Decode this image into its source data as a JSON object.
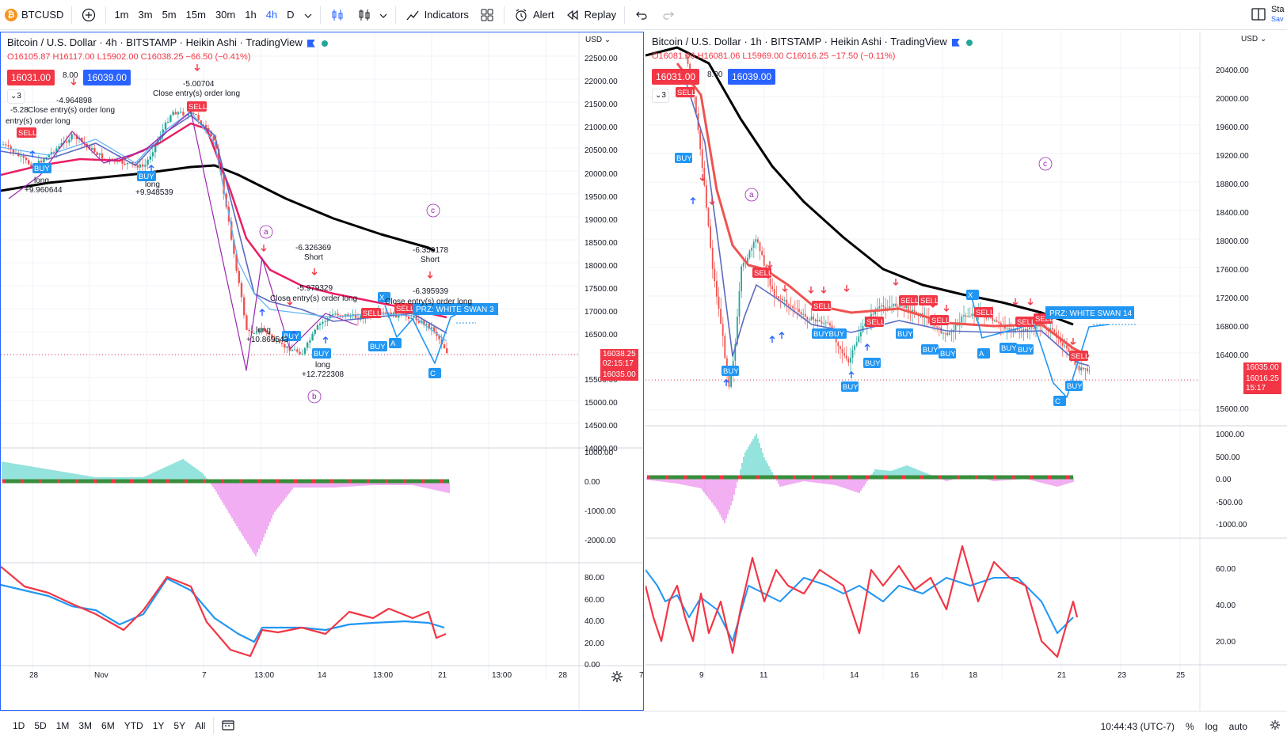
{
  "toolbar": {
    "symbol": "BTCUSD",
    "intervals": [
      "1m",
      "3m",
      "5m",
      "15m",
      "30m",
      "1h",
      "4h",
      "D"
    ],
    "active_interval": "4h",
    "indicators_label": "Indicators",
    "alert_label": "Alert",
    "replay_label": "Replay",
    "right_label_1": "Sta",
    "right_label_2": "Sav"
  },
  "left_chart": {
    "title": "Bitcoin / U.S. Dollar · 4h · BITSTAMP · Heikin Ashi · TradingView",
    "ohlc": {
      "open": "O16105.87",
      "high": "H16117.00",
      "low": "L15902.00",
      "close": "C16038.25",
      "change": "−66.50 (−0.41%)"
    },
    "sell_price": "16031.00",
    "buy_price": "16039.00",
    "spread": "8.00",
    "collapse": "3",
    "currency": "USD",
    "price_axis": [
      "22500.00",
      "22000.00",
      "21500.00",
      "21000.00",
      "20500.00",
      "20000.00",
      "19500.00",
      "19000.00",
      "18500.00",
      "18000.00",
      "17500.00",
      "17000.00",
      "16500.00",
      "15500.00",
      "15000.00",
      "14500.00",
      "14000.00"
    ],
    "last_price": "16038.25",
    "countdown": "02:15:17",
    "bid_tag": "16035.00",
    "macd_axis": [
      "1000.00",
      "0.00",
      "-1000.00",
      "-2000.00"
    ],
    "rsi_axis": [
      "80.00",
      "60.00",
      "40.00",
      "20.00",
      "0.00"
    ],
    "time_axis": [
      "28",
      "Nov",
      "7",
      "13:00",
      "14",
      "13:00",
      "21",
      "13:00",
      "28"
    ],
    "annotations": {
      "a": "a",
      "b": "b",
      "c": "c",
      "n1": "-5.00704",
      "n1b": "Close entry(s) order long",
      "n2": "-4.964898",
      "n2b": "Close entry(s) order long",
      "n3": "-5.28",
      "n3b": "entry(s) order long",
      "n4": "+9.960644",
      "n4b": "long",
      "n5": "+9.948539",
      "n5b": "long",
      "n6": "-6.326369",
      "n6b": "Short",
      "n7": "-5.979329",
      "n7b": "Close entry(s) order long",
      "n8": "+10.869543",
      "n8b": "long",
      "n9": "+12.722308",
      "n9b": "long",
      "n10": "-6.350178",
      "n10b": "Short",
      "n11": "-6.395939",
      "n11b": "Close entry(s) order long",
      "prz": "PRZ: WHITE SWAN 3",
      "sell": "SELL",
      "buy": "BUY",
      "x": "X",
      "pa": "A",
      "pc": "C"
    }
  },
  "right_chart": {
    "title": "Bitcoin / U.S. Dollar · 1h · BITSTAMP · Heikin Ashi · TradingView",
    "ohlc": {
      "open": "O16081.06",
      "high": "H16081.06",
      "low": "L15969.00",
      "close": "C16016.25",
      "change": "−17.50 (−0.11%)"
    },
    "sell_price": "16031.00",
    "buy_price": "16039.00",
    "spread": "8.00",
    "collapse": "3",
    "currency": "USD",
    "price_axis": [
      "20400.00",
      "20000.00",
      "19600.00",
      "19200.00",
      "18800.00",
      "18400.00",
      "18000.00",
      "17600.00",
      "17200.00",
      "16800.00",
      "16400.00",
      "15600.00"
    ],
    "last_price": "16035.00",
    "last_price2": "16016.25",
    "countdown": "15:17",
    "macd_axis": [
      "1000.00",
      "500.00",
      "0.00",
      "-500.00",
      "-1000.00"
    ],
    "rsi_axis": [
      "60.00",
      "40.00",
      "20.00"
    ],
    "time_axis": [
      "7",
      "9",
      "11",
      "14",
      "16",
      "18",
      "21",
      "23",
      "25"
    ],
    "annotations": {
      "a": "a",
      "c": "c",
      "prz": "PRZ: WHITE SWAN 14",
      "sell": "SELL",
      "buy": "BUY",
      "x": "X",
      "pa": "A",
      "pc": "C",
      "buybuy": "BUYBUY"
    }
  },
  "bottombar": {
    "ranges": [
      "1D",
      "5D",
      "1M",
      "3M",
      "6M",
      "YTD",
      "1Y",
      "5Y",
      "All"
    ],
    "clock": "10:44:43 (UTC-7)",
    "percent": "%",
    "log": "log",
    "auto": "auto"
  },
  "colors": {
    "sell": "#f23645",
    "buy": "#2962ff",
    "ema_black": "#000000",
    "ema_red": "#e91e63",
    "rsi_blue": "#2196f3",
    "rsi_red": "#f23645",
    "harmonic": "#9c27b0",
    "macd_pos": "#4dd0c5",
    "macd_neg": "#e879e8"
  }
}
